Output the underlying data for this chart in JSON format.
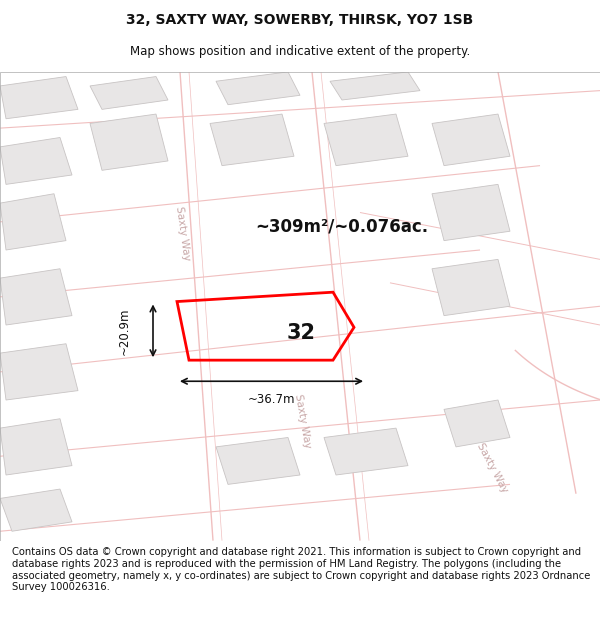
{
  "title": "32, SAXTY WAY, SOWERBY, THIRSK, YO7 1SB",
  "subtitle": "Map shows position and indicative extent of the property.",
  "footer": "Contains OS data © Crown copyright and database right 2021. This information is subject to Crown copyright and database rights 2023 and is reproduced with the permission of HM Land Registry. The polygons (including the associated geometry, namely x, y co-ordinates) are subject to Crown copyright and database rights 2023 Ordnance Survey 100026316.",
  "area_label": "~309m²/~0.076ac.",
  "width_label": "~36.7m",
  "height_label": "~20.9m",
  "number_label": "32",
  "map_bg": "#f7f6f6",
  "road_color": "#f0bfbf",
  "building_fill": "#e8e6e6",
  "building_stroke": "#c8c4c4",
  "plot_color": "#ff0000",
  "title_fontsize": 10,
  "subtitle_fontsize": 8.5,
  "footer_fontsize": 7.2,
  "road_lw": 0.8,
  "saxtyway_color": "#c8a8a8",
  "saxtyway_fontsize": 7.5
}
